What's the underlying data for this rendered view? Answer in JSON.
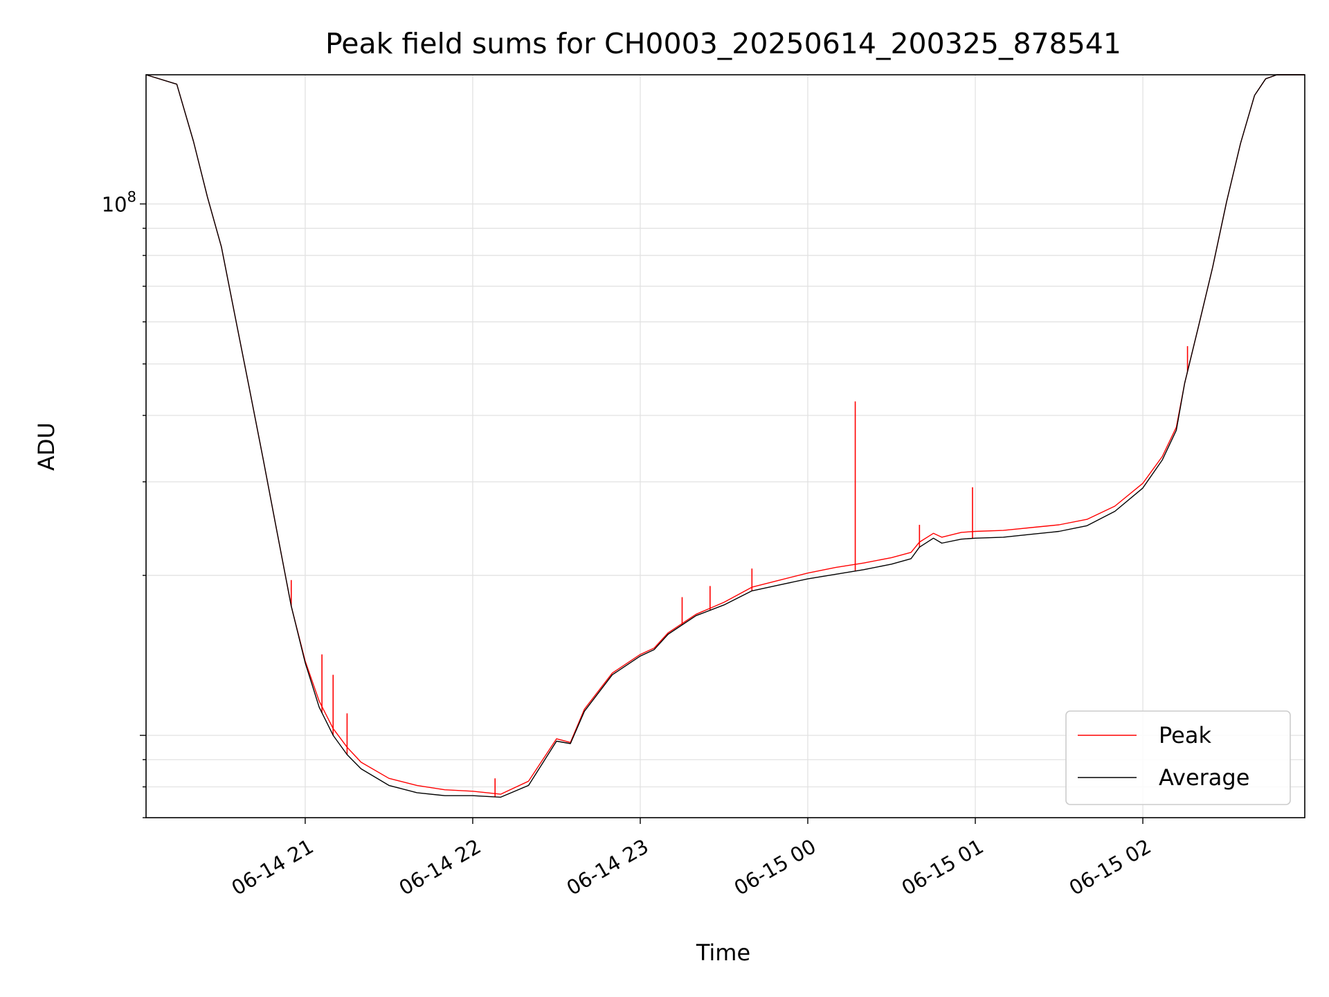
{
  "chart_data": {
    "type": "line",
    "title": "Peak field sums for CH0003_20250614_200325_878541",
    "xlabel": "Time",
    "ylabel": "ADU",
    "yscale": "log",
    "ylim": [
      7000000,
      175000000
    ],
    "xlim": [
      "2025-06-14 20:03",
      "2025-06-15 02:58"
    ],
    "grid": true,
    "legend_position": "lower right",
    "x_ticks": [
      {
        "value": "2025-06-14 21:00",
        "label": "06-14 21"
      },
      {
        "value": "2025-06-14 22:00",
        "label": "06-14 22"
      },
      {
        "value": "2025-06-14 23:00",
        "label": "06-14 23"
      },
      {
        "value": "2025-06-15 00:00",
        "label": "06-15 00"
      },
      {
        "value": "2025-06-15 01:00",
        "label": "06-15 01"
      },
      {
        "value": "2025-06-15 02:00",
        "label": "06-15 02"
      }
    ],
    "y_ticks": [
      {
        "value": 100000000,
        "base": "10",
        "exp": "8"
      }
    ],
    "x": [
      "2025-06-14 20:03",
      "2025-06-14 20:14",
      "2025-06-14 20:20",
      "2025-06-14 20:25",
      "2025-06-14 20:30",
      "2025-06-14 20:35",
      "2025-06-14 20:40",
      "2025-06-14 20:45",
      "2025-06-14 20:50",
      "2025-06-14 20:55",
      "2025-06-14 21:00",
      "2025-06-14 21:05",
      "2025-06-14 21:10",
      "2025-06-14 21:15",
      "2025-06-14 21:20",
      "2025-06-14 21:30",
      "2025-06-14 21:40",
      "2025-06-14 21:50",
      "2025-06-14 22:00",
      "2025-06-14 22:10",
      "2025-06-14 22:20",
      "2025-06-14 22:30",
      "2025-06-14 22:35",
      "2025-06-14 22:40",
      "2025-06-14 22:50",
      "2025-06-14 23:00",
      "2025-06-14 23:05",
      "2025-06-14 23:10",
      "2025-06-14 23:20",
      "2025-06-14 23:30",
      "2025-06-14 23:40",
      "2025-06-14 23:50",
      "2025-06-15 00:00",
      "2025-06-15 00:10",
      "2025-06-15 00:20",
      "2025-06-15 00:30",
      "2025-06-15 00:37",
      "2025-06-15 00:40",
      "2025-06-15 00:45",
      "2025-06-15 00:48",
      "2025-06-15 00:55",
      "2025-06-15 01:00",
      "2025-06-15 01:10",
      "2025-06-15 01:20",
      "2025-06-15 01:30",
      "2025-06-15 01:40",
      "2025-06-15 01:50",
      "2025-06-15 02:00",
      "2025-06-15 02:07",
      "2025-06-15 02:12",
      "2025-06-15 02:15",
      "2025-06-15 02:20",
      "2025-06-15 02:25",
      "2025-06-15 02:30",
      "2025-06-15 02:35",
      "2025-06-15 02:40",
      "2025-06-15 02:44",
      "2025-06-15 02:48",
      "2025-06-15 02:58"
    ],
    "series": [
      {
        "name": "Peak",
        "color": "#ff0000",
        "values": [
          175000000,
          168000000,
          131000000,
          103000000,
          83000000,
          61000000,
          45000000,
          33000000,
          24000000,
          17500000,
          13800000,
          11600000,
          10300000,
          9500000,
          8900000,
          8300000,
          8050000,
          7900000,
          7850000,
          7750000,
          8200000,
          9850000,
          9700000,
          11200000,
          13100000,
          14200000,
          14600000,
          15600000,
          16900000,
          17800000,
          19000000,
          19600000,
          20200000,
          20700000,
          21100000,
          21600000,
          22100000,
          23100000,
          24000000,
          23600000,
          24100000,
          24200000,
          24300000,
          24600000,
          24900000,
          25500000,
          27000000,
          29800000,
          33500000,
          38000000,
          46000000,
          59000000,
          76000000,
          101000000,
          130000000,
          160000000,
          172000000,
          175000000,
          175000000
        ]
      },
      {
        "name": "Average",
        "color": "#000000",
        "values": [
          175000000,
          168000000,
          131000000,
          103000000,
          83000000,
          61000000,
          45000000,
          33000000,
          24000000,
          17500000,
          13700000,
          11300000,
          10000000,
          9200000,
          8650000,
          8050000,
          7800000,
          7700000,
          7700000,
          7650000,
          8050000,
          9750000,
          9650000,
          11100000,
          13000000,
          14100000,
          14500000,
          15500000,
          16800000,
          17600000,
          18700000,
          19200000,
          19700000,
          20100000,
          20500000,
          21000000,
          21500000,
          22600000,
          23500000,
          23000000,
          23400000,
          23500000,
          23600000,
          23900000,
          24200000,
          24800000,
          26400000,
          29200000,
          33000000,
          37500000,
          46000000,
          59000000,
          76000000,
          101000000,
          130000000,
          160000000,
          172000000,
          175000000,
          175000000
        ]
      }
    ],
    "peak_spikes": [
      {
        "x": "2025-06-14 20:55",
        "y": 19600000
      },
      {
        "x": "2025-06-14 21:06",
        "y": 14200000
      },
      {
        "x": "2025-06-14 21:10",
        "y": 13000000
      },
      {
        "x": "2025-06-14 21:15",
        "y": 11000000
      },
      {
        "x": "2025-06-14 22:08",
        "y": 8300000
      },
      {
        "x": "2025-06-14 23:15",
        "y": 18200000
      },
      {
        "x": "2025-06-14 23:25",
        "y": 19100000
      },
      {
        "x": "2025-06-14 23:40",
        "y": 20600000
      },
      {
        "x": "2025-06-15 00:17",
        "y": 42500000
      },
      {
        "x": "2025-06-15 00:40",
        "y": 24900000
      },
      {
        "x": "2025-06-15 00:59",
        "y": 29300000
      },
      {
        "x": "2025-06-15 02:16",
        "y": 54000000
      }
    ]
  }
}
